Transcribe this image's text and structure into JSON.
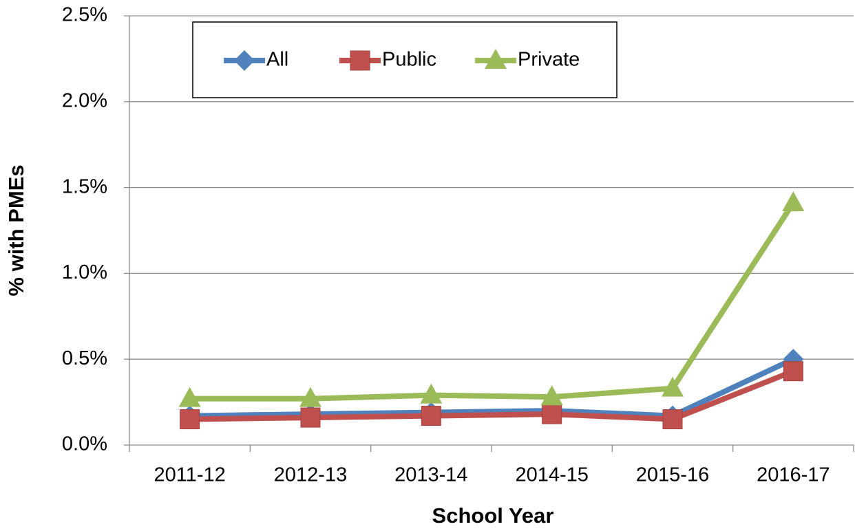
{
  "chart_data": {
    "type": "line",
    "x_label": "School Year",
    "y_label": "% with PMEs",
    "categories": [
      "2011-12",
      "2012-13",
      "2013-14",
      "2014-15",
      "2015-16",
      "2016-17"
    ],
    "series": [
      {
        "name": "All",
        "color": "#4f81bd",
        "marker": "diamond",
        "values": [
          0.17,
          0.18,
          0.19,
          0.2,
          0.17,
          0.5
        ]
      },
      {
        "name": "Public",
        "color": "#c0504d",
        "marker": "square",
        "values": [
          0.15,
          0.16,
          0.17,
          0.18,
          0.15,
          0.43
        ]
      },
      {
        "name": "Private",
        "color": "#9bbb59",
        "marker": "triangle",
        "values": [
          0.27,
          0.27,
          0.29,
          0.28,
          0.33,
          1.41
        ]
      }
    ],
    "ylim": [
      0,
      2.5
    ],
    "yticks": [
      {
        "value": 0,
        "label": "0.0%"
      },
      {
        "value": 0.5,
        "label": "0.5%"
      },
      {
        "value": 1.0,
        "label": "1.0%"
      },
      {
        "value": 1.5,
        "label": "1.5%"
      },
      {
        "value": 2.0,
        "label": "2.0%"
      },
      {
        "value": 2.5,
        "label": "2.5%"
      }
    ],
    "grid": true,
    "legend": "top"
  }
}
